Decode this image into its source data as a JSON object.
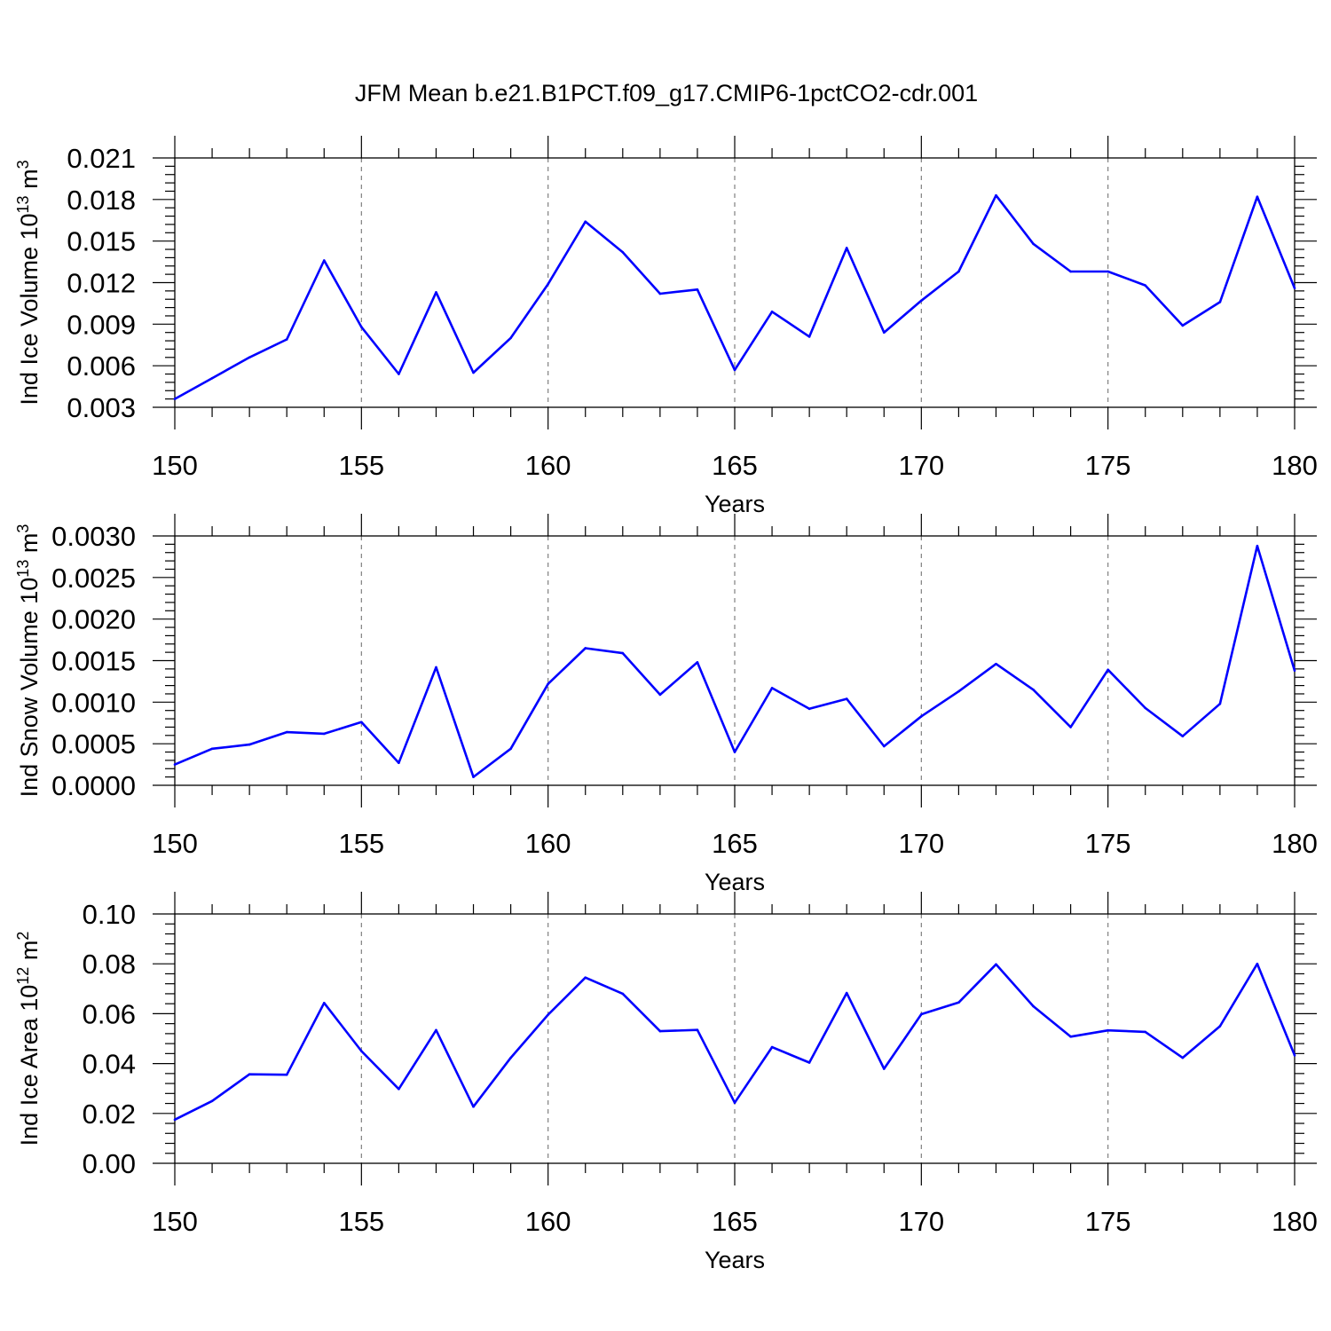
{
  "title": "JFM Mean b.e21.B1PCT.f09_g17.CMIP6-1pctCO2-cdr.001",
  "colors": {
    "line": "#0000ff",
    "axis": "#000000",
    "grid": "#808080",
    "background": "#ffffff"
  },
  "chart_data": [
    {
      "type": "line",
      "ylabel": {
        "base": "Ind Ice Volume 10",
        "exp": "13",
        "unit": " m",
        "unit_exp": "3"
      },
      "xlabel": "Years",
      "xlim": [
        150,
        180
      ],
      "ylim": [
        0.003,
        0.021
      ],
      "xticks": [
        150,
        155,
        160,
        165,
        170,
        175,
        180
      ],
      "xtick_labels": [
        "150",
        "155",
        "160",
        "165",
        "170",
        "175",
        "180"
      ],
      "yticks": [
        0.003,
        0.006,
        0.009,
        0.012,
        0.015,
        0.018,
        0.021
      ],
      "ytick_labels": [
        "0.003",
        "0.006",
        "0.009",
        "0.012",
        "0.015",
        "0.018",
        "0.021"
      ],
      "ymin_step": 0.0006,
      "x": [
        150,
        151,
        152,
        153,
        154,
        155,
        156,
        157,
        158,
        159,
        160,
        161,
        162,
        163,
        164,
        165,
        166,
        167,
        168,
        169,
        170,
        171,
        172,
        173,
        174,
        175,
        176,
        177,
        178,
        179,
        180
      ],
      "values": [
        0.0036,
        0.0051,
        0.0066,
        0.0079,
        0.0136,
        0.0088,
        0.0054,
        0.0113,
        0.0055,
        0.008,
        0.0119,
        0.0164,
        0.0142,
        0.0112,
        0.0115,
        0.0057,
        0.0099,
        0.0081,
        0.0145,
        0.0084,
        0.0107,
        0.0128,
        0.0183,
        0.0148,
        0.0128,
        0.0128,
        0.0118,
        0.0089,
        0.0106,
        0.0182,
        0.0116
      ]
    },
    {
      "type": "line",
      "ylabel": {
        "base": "Ind Snow Volume 10",
        "exp": "13",
        "unit": " m",
        "unit_exp": "3"
      },
      "xlabel": "Years",
      "xlim": [
        150,
        180
      ],
      "ylim": [
        0.0,
        0.003
      ],
      "xticks": [
        150,
        155,
        160,
        165,
        170,
        175,
        180
      ],
      "xtick_labels": [
        "150",
        "155",
        "160",
        "165",
        "170",
        "175",
        "180"
      ],
      "yticks": [
        0.0,
        0.0005,
        0.001,
        0.0015,
        0.002,
        0.0025,
        0.003
      ],
      "ytick_labels": [
        "0.0000",
        "0.0005",
        "0.0010",
        "0.0015",
        "0.0020",
        "0.0025",
        "0.0030"
      ],
      "ymin_step": 0.0001,
      "x": [
        150,
        151,
        152,
        153,
        154,
        155,
        156,
        157,
        158,
        159,
        160,
        161,
        162,
        163,
        164,
        165,
        166,
        167,
        168,
        169,
        170,
        171,
        172,
        173,
        174,
        175,
        176,
        177,
        178,
        179,
        180
      ],
      "values": [
        0.00025,
        0.00044,
        0.00049,
        0.00064,
        0.00062,
        0.00076,
        0.00027,
        0.00142,
        0.0001,
        0.00044,
        0.00122,
        0.00165,
        0.00159,
        0.00109,
        0.00148,
        0.0004,
        0.00117,
        0.00092,
        0.00104,
        0.00047,
        0.00083,
        0.00113,
        0.00146,
        0.00115,
        0.0007,
        0.00139,
        0.00093,
        0.00059,
        0.00098,
        0.00288,
        0.00138
      ]
    },
    {
      "type": "line",
      "ylabel": {
        "base": "Ind Ice Area 10",
        "exp": "12",
        "unit": " m",
        "unit_exp": "2"
      },
      "xlabel": "Years",
      "xlim": [
        150,
        180
      ],
      "ylim": [
        0.0,
        0.1
      ],
      "xticks": [
        150,
        155,
        160,
        165,
        170,
        175,
        180
      ],
      "xtick_labels": [
        "150",
        "155",
        "160",
        "165",
        "170",
        "175",
        "180"
      ],
      "yticks": [
        0.0,
        0.02,
        0.04,
        0.06,
        0.08,
        0.1
      ],
      "ytick_labels": [
        "0.00",
        "0.02",
        "0.04",
        "0.06",
        "0.08",
        "0.10"
      ],
      "ymin_step": 0.004,
      "x": [
        150,
        151,
        152,
        153,
        154,
        155,
        156,
        157,
        158,
        159,
        160,
        161,
        162,
        163,
        164,
        165,
        166,
        167,
        168,
        169,
        170,
        171,
        172,
        173,
        174,
        175,
        176,
        177,
        178,
        179,
        180
      ],
      "values": [
        0.0175,
        0.025,
        0.0357,
        0.0355,
        0.0643,
        0.045,
        0.0298,
        0.0534,
        0.0227,
        0.0423,
        0.0596,
        0.0745,
        0.068,
        0.053,
        0.0535,
        0.0243,
        0.0466,
        0.0404,
        0.0683,
        0.0379,
        0.0598,
        0.0645,
        0.0798,
        0.063,
        0.0508,
        0.0533,
        0.0527,
        0.0423,
        0.055,
        0.08,
        0.0433
      ]
    }
  ]
}
